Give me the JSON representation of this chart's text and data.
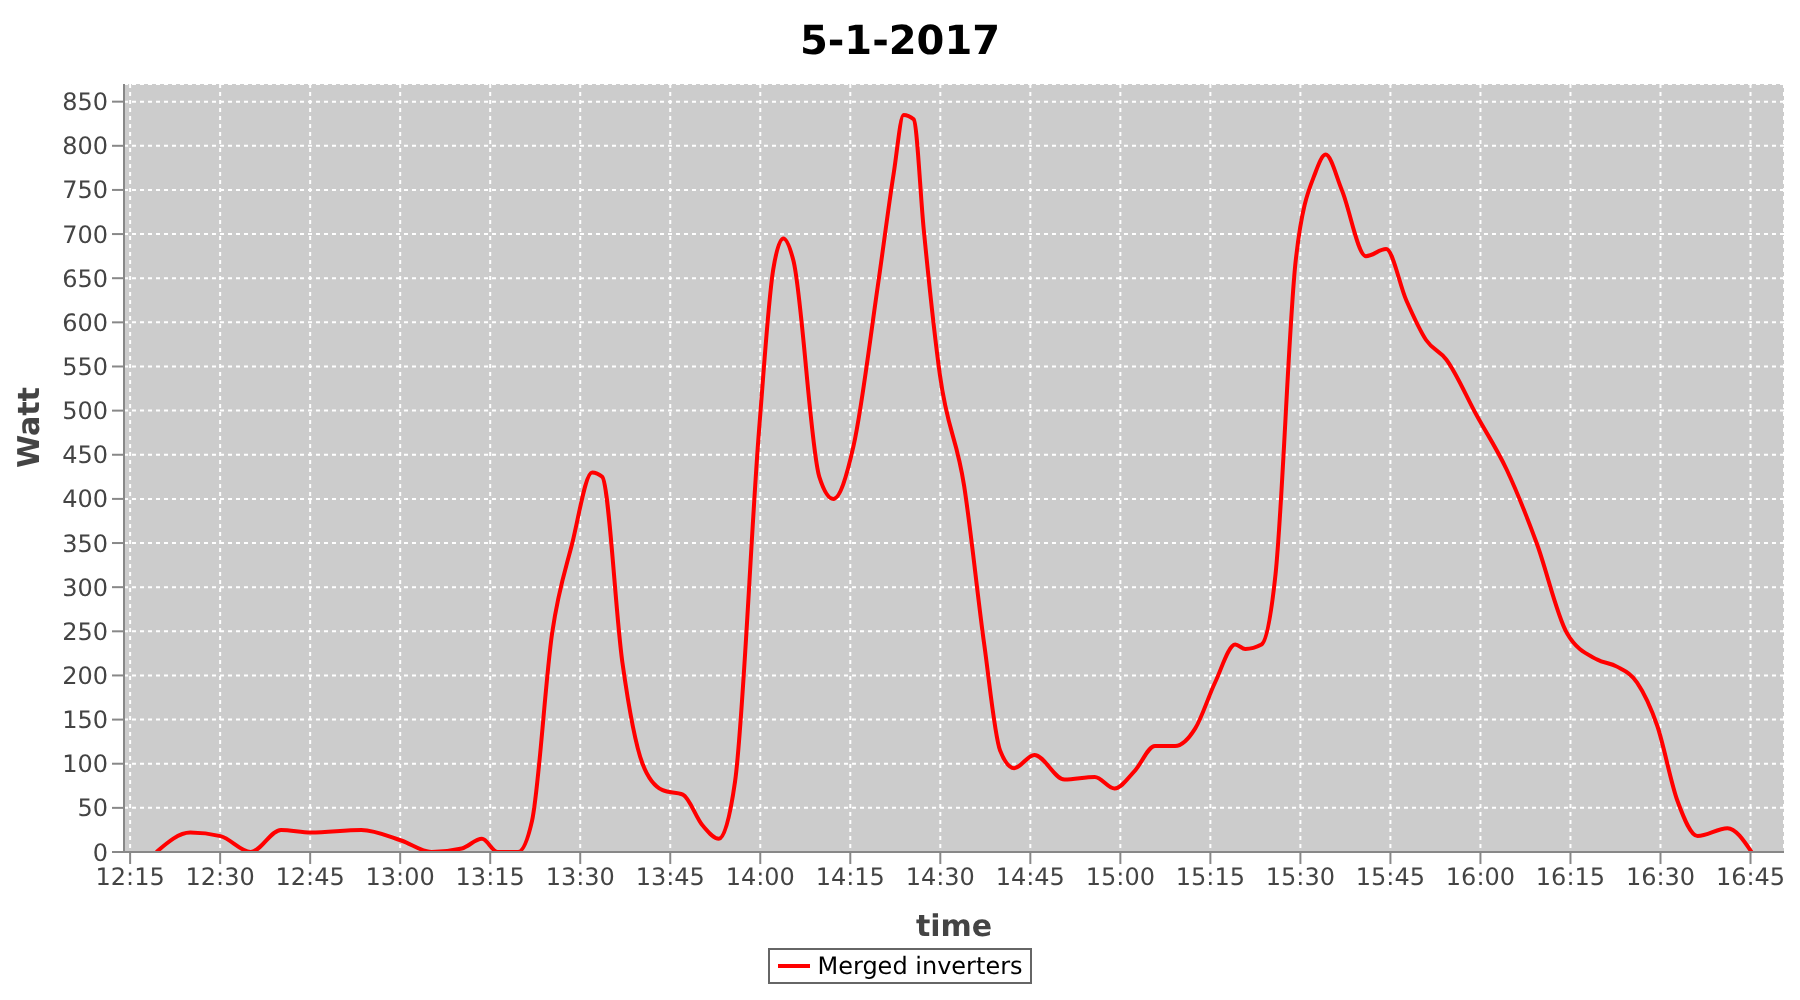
{
  "chart_data": {
    "type": "line",
    "title": "5-1-2017",
    "xlabel": "time",
    "ylabel": "Watt",
    "x": [
      12.323,
      12.417,
      12.501,
      12.585,
      12.669,
      12.752,
      12.892,
      13.003,
      13.087,
      13.171,
      13.227,
      13.271,
      13.327,
      13.366,
      13.422,
      13.478,
      13.533,
      13.561,
      13.617,
      13.673,
      13.729,
      13.785,
      13.84,
      13.885,
      13.93,
      13.997,
      14.036,
      14.064,
      14.092,
      14.164,
      14.203,
      14.259,
      14.326,
      14.371,
      14.398,
      14.426,
      14.454,
      14.499,
      14.566,
      14.622,
      14.666,
      14.705,
      14.761,
      14.845,
      14.929,
      14.984,
      15.04,
      15.096,
      15.152,
      15.208,
      15.263,
      15.319,
      15.347,
      15.392,
      15.431,
      15.487,
      15.542,
      15.57,
      15.615,
      15.682,
      15.738,
      15.794,
      15.849,
      15.905,
      15.989,
      16.073,
      16.156,
      16.24,
      16.324,
      16.379,
      16.435,
      16.491,
      16.547,
      16.603,
      16.686,
      16.753
    ],
    "series": [
      {
        "name": "Merged inverters",
        "color": "#ff0000",
        "values": [
          0,
          22,
          18,
          0,
          25,
          22,
          25,
          13,
          0,
          4,
          15,
          0,
          0,
          35,
          248,
          350,
          430,
          425,
          215,
          100,
          70,
          65,
          30,
          15,
          80,
          480,
          660,
          695,
          670,
          425,
          400,
          460,
          640,
          770,
          835,
          830,
          705,
          540,
          415,
          235,
          115,
          95,
          110,
          82,
          85,
          72,
          92,
          120,
          120,
          140,
          192,
          235,
          230,
          235,
          315,
          670,
          770,
          790,
          750,
          675,
          683,
          625,
          580,
          558,
          495,
          433,
          350,
          248,
          218,
          210,
          192,
          143,
          58,
          18,
          27,
          0
        ]
      }
    ],
    "xlim": [
      12.233,
      16.843
    ],
    "xticks": [
      {
        "value": 12.25,
        "label": "12:15"
      },
      {
        "value": 12.5,
        "label": "12:30"
      },
      {
        "value": 12.75,
        "label": "12:45"
      },
      {
        "value": 13,
        "label": "13:00"
      },
      {
        "value": 13.25,
        "label": "13:15"
      },
      {
        "value": 13.5,
        "label": "13:30"
      },
      {
        "value": 13.75,
        "label": "13:45"
      },
      {
        "value": 14,
        "label": "14:00"
      },
      {
        "value": 14.25,
        "label": "14:15"
      },
      {
        "value": 14.5,
        "label": "14:30"
      },
      {
        "value": 14.75,
        "label": "14:45"
      },
      {
        "value": 15,
        "label": "15:00"
      },
      {
        "value": 15.25,
        "label": "15:15"
      },
      {
        "value": 15.5,
        "label": "15:30"
      },
      {
        "value": 15.75,
        "label": "15:45"
      },
      {
        "value": 16,
        "label": "16:00"
      },
      {
        "value": 16.25,
        "label": "16:15"
      },
      {
        "value": 16.5,
        "label": "16:30"
      },
      {
        "value": 16.75,
        "label": "16:45"
      }
    ],
    "ylim": [
      0,
      870
    ],
    "yticks": [
      0,
      50,
      100,
      150,
      200,
      250,
      300,
      350,
      400,
      450,
      500,
      550,
      600,
      650,
      700,
      750,
      800,
      850
    ],
    "grid": true,
    "legend": "bottom",
    "marker": "none",
    "line_style": "solid"
  }
}
